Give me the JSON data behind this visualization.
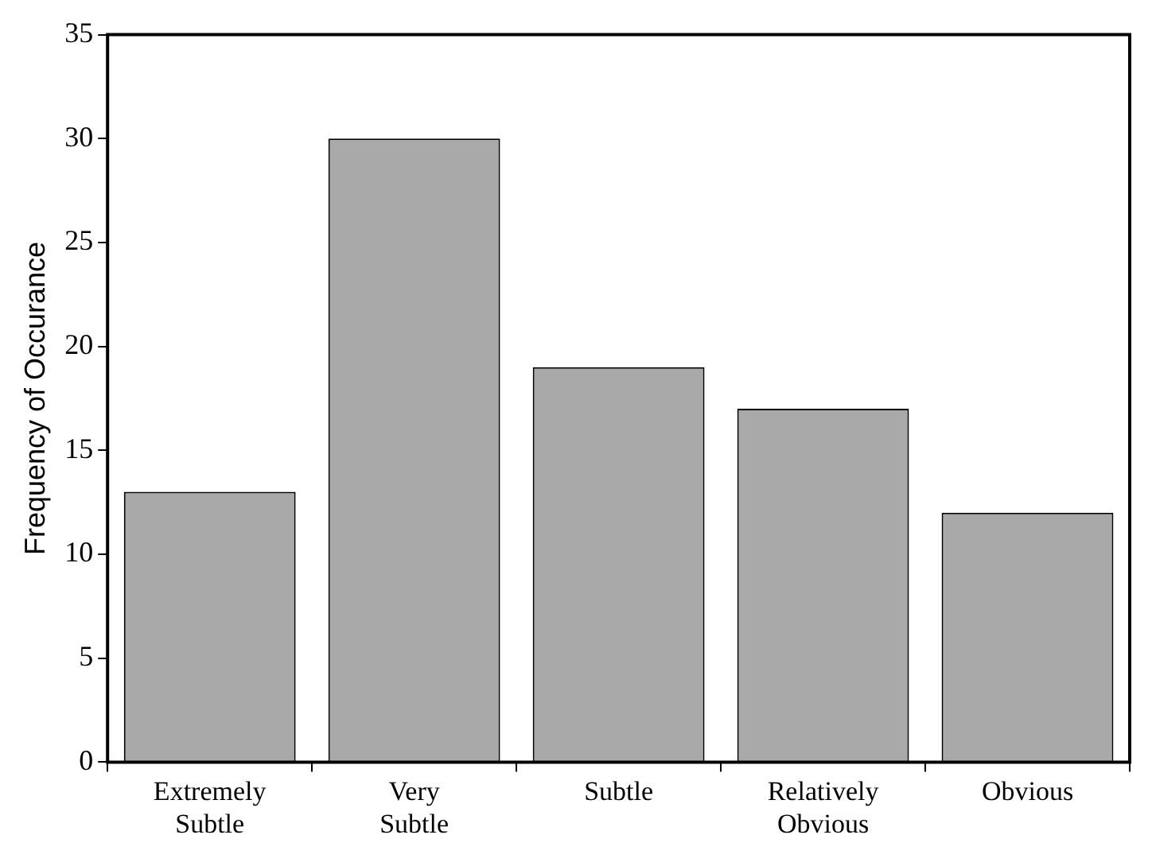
{
  "chart_data": {
    "type": "bar",
    "ylabel": "Frequency of Occurance",
    "categories": [
      "Extremely Subtle",
      "Very Subtle",
      "Subtle",
      "Relatively Obvious",
      "Obvious"
    ],
    "values": [
      13,
      30,
      19,
      17,
      12
    ],
    "color": "#a9a9a9",
    "ylim": [
      0,
      35
    ],
    "yticks": [
      0,
      5,
      10,
      15,
      20,
      25,
      30,
      35
    ],
    "grid": false,
    "legend": false
  }
}
